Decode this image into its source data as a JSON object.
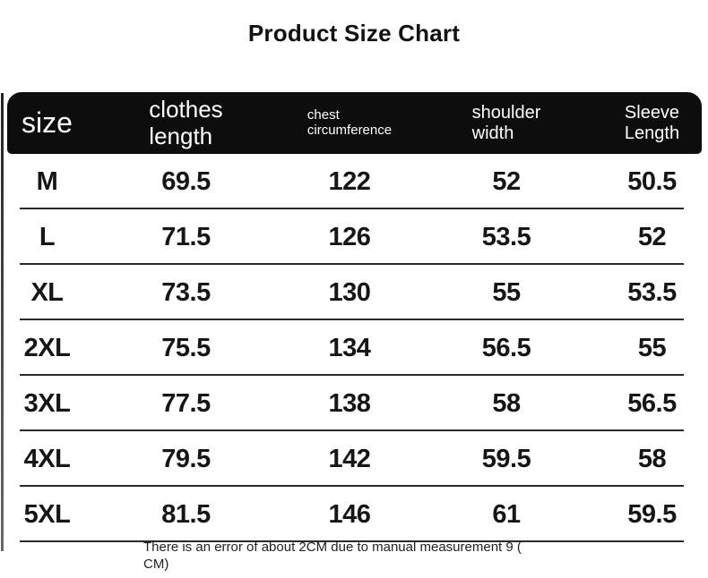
{
  "title": "Product Size Chart",
  "chart_data": {
    "type": "table",
    "title": "Product Size Chart",
    "columns": [
      "size",
      "clothes length",
      "chest circumference",
      "shoulder width",
      "Sleeve Length"
    ],
    "rows": [
      [
        "M",
        69.5,
        122,
        52,
        50.5
      ],
      [
        "L",
        71.5,
        126,
        53.5,
        52
      ],
      [
        "XL",
        73.5,
        130,
        55,
        53.5
      ],
      [
        "2XL",
        75.5,
        134,
        56.5,
        55
      ],
      [
        "3XL",
        77.5,
        138,
        58,
        56.5
      ],
      [
        "4XL",
        79.5,
        142,
        59.5,
        58
      ],
      [
        "5XL",
        81.5,
        146,
        61,
        59.5
      ]
    ],
    "units": "CM"
  },
  "table": {
    "columns": [
      {
        "label": "size"
      },
      {
        "label": "clothes\nlength"
      },
      {
        "label": "chest\ncircumference"
      },
      {
        "label": "shoulder\nwidth"
      },
      {
        "label": "Sleeve\nLength"
      }
    ],
    "rows": [
      {
        "size": "M",
        "clothes_length": "69.5",
        "chest": "122",
        "shoulder": "52",
        "sleeve": "50.5"
      },
      {
        "size": "L",
        "clothes_length": "71.5",
        "chest": "126",
        "shoulder": "53.5",
        "sleeve": "52"
      },
      {
        "size": "XL",
        "clothes_length": "73.5",
        "chest": "130",
        "shoulder": "55",
        "sleeve": "53.5"
      },
      {
        "size": "2XL",
        "clothes_length": "75.5",
        "chest": "134",
        "shoulder": "56.5",
        "sleeve": "55"
      },
      {
        "size": "3XL",
        "clothes_length": "77.5",
        "chest": "138",
        "shoulder": "58",
        "sleeve": "56.5"
      },
      {
        "size": "4XL",
        "clothes_length": "79.5",
        "chest": "142",
        "shoulder": "59.5",
        "sleeve": "58"
      },
      {
        "size": "5XL",
        "clothes_length": "81.5",
        "chest": "146",
        "shoulder": "61",
        "sleeve": "59.5"
      }
    ]
  },
  "footnote": "There is an error of about 2CM due to manual measurement 9 (\nCM)",
  "colors": {
    "background": "#ffffff",
    "header_bg": "#0d0d0d",
    "header_text": "#ffffff",
    "body_text": "#161616",
    "divider": "#2b2b2b"
  }
}
